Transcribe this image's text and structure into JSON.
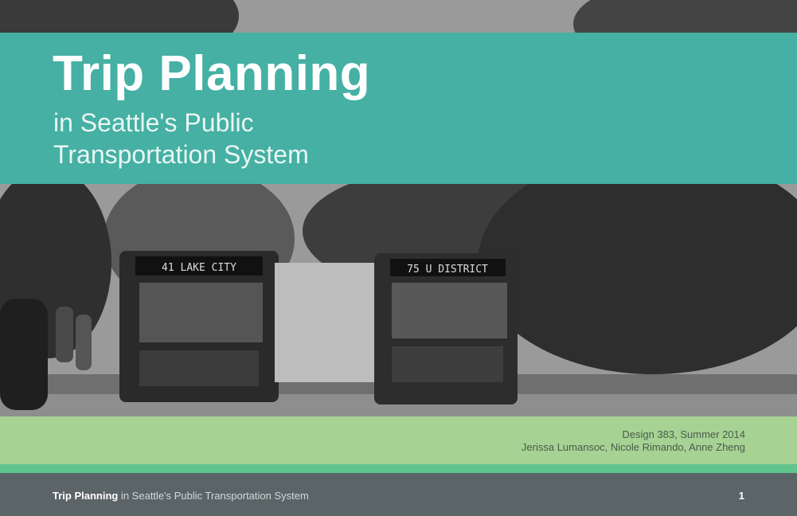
{
  "title": "Trip Planning",
  "subtitle_line1": "in Seattle's Public",
  "subtitle_line2": "Transportation System",
  "credit_line1": "Design 383, Summer 2014",
  "credit_line2": "Jerissa Lumansoc, Nicole Rimando, Anne Zheng",
  "footer": {
    "title_bold": "Trip Planning",
    "title_rest": " in Seattle's Public Transportation System",
    "page_number": "1"
  },
  "photo": {
    "bus1_sign": "41  LAKE CITY",
    "bus2_sign": "75 U DISTRICT"
  },
  "colors": {
    "banner": "#45b0a3",
    "green_band": "#a6d394",
    "strip": "#5fc48e",
    "footer": "#5b6467"
  }
}
